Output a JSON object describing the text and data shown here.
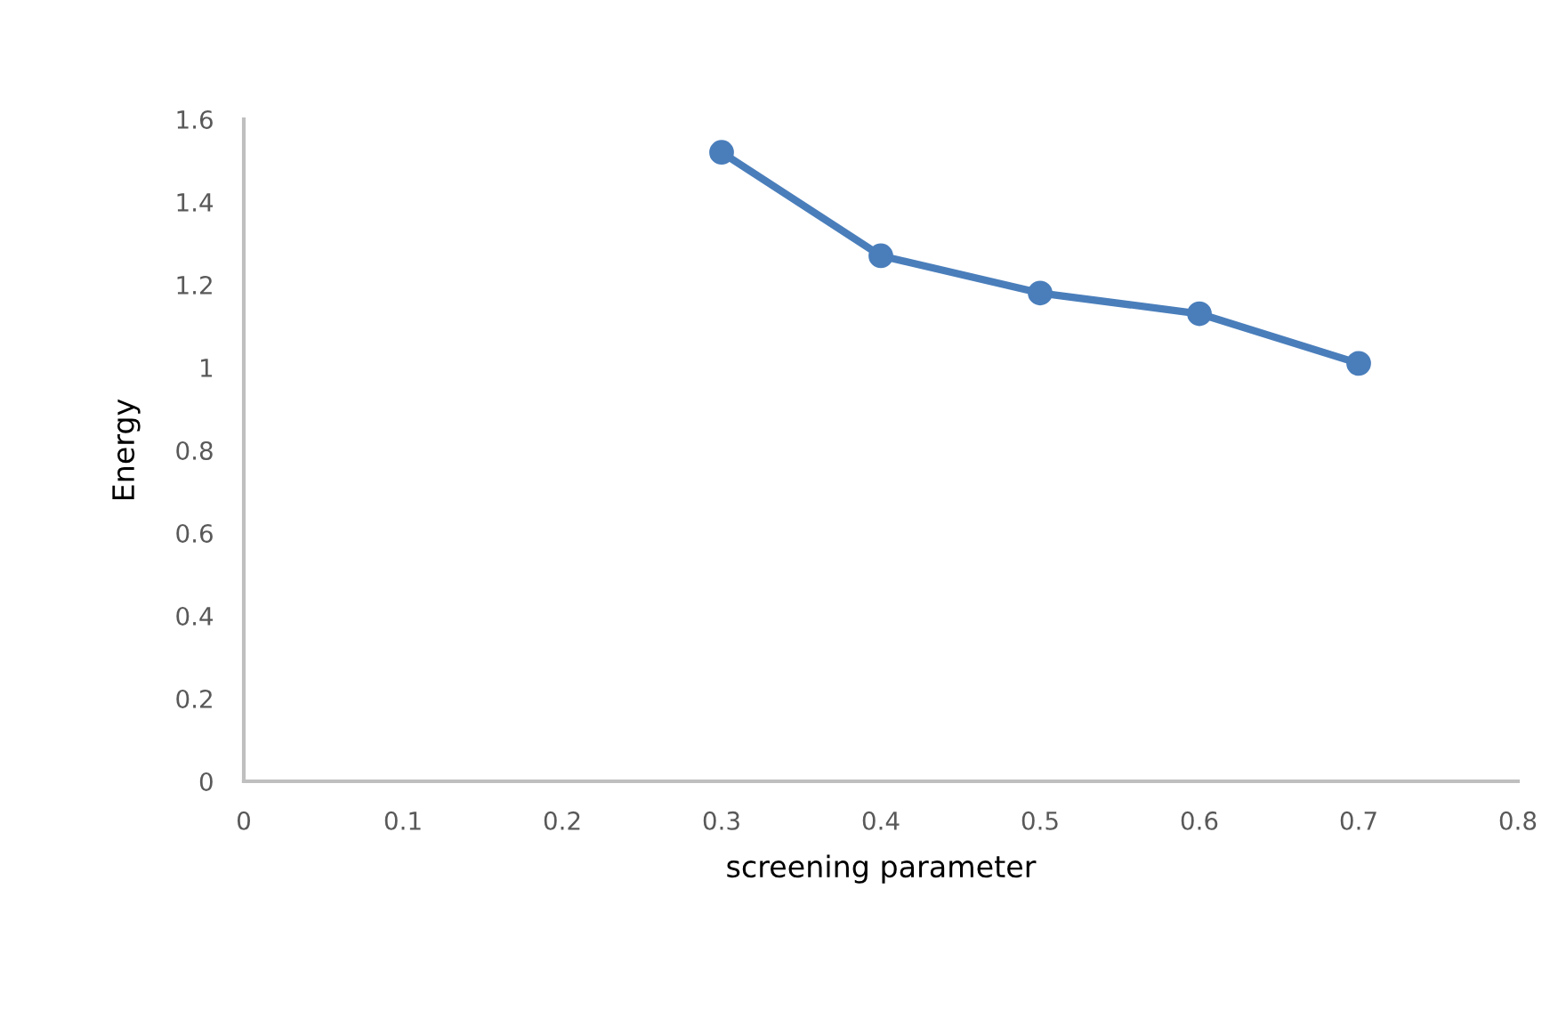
{
  "chart_data": {
    "type": "line",
    "xlabel": "screening parameter",
    "ylabel": "Energy",
    "x": [
      0.3,
      0.4,
      0.5,
      0.6,
      0.7
    ],
    "series": [
      {
        "color": "#4a7ebb",
        "values": [
          1.52,
          1.27,
          1.18,
          1.13,
          1.01
        ]
      }
    ],
    "xlim": [
      0,
      0.8
    ],
    "xticks": [
      0,
      0.1,
      0.2,
      0.3,
      0.4,
      0.5,
      0.6,
      0.7,
      0.8
    ],
    "ylim": [
      0,
      1.6
    ],
    "yticks": [
      0,
      0.2,
      0.4,
      0.6,
      0.8,
      1,
      1.2,
      1.4,
      1.6
    ],
    "marker": "circle",
    "line_style": "solid",
    "grid": false,
    "legend": false
  }
}
